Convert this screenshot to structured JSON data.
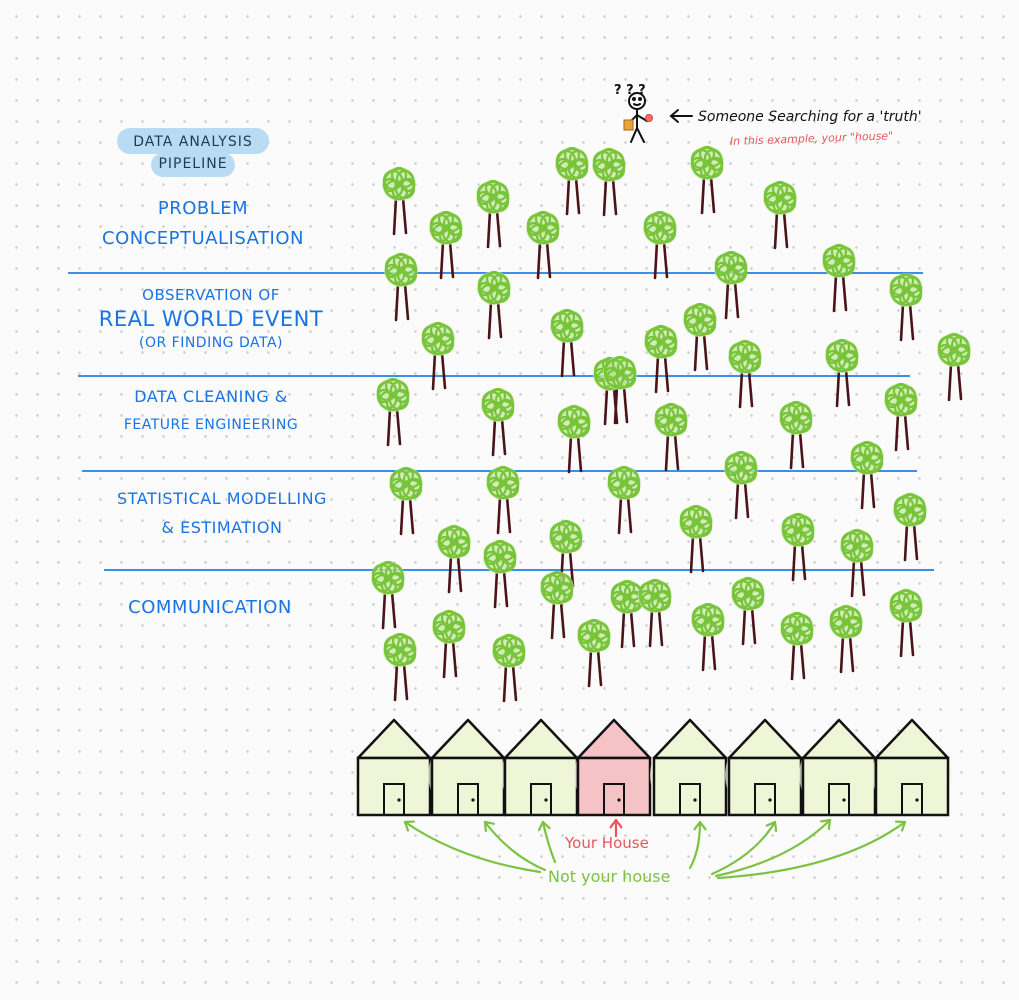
{
  "title": {
    "line1": "Data analysis",
    "line2": "pipeline"
  },
  "stages": [
    {
      "lines": [
        "Problem",
        "conceptualisation"
      ]
    },
    {
      "lines": [
        "Observation of",
        "Real world event",
        "(or finding data)"
      ]
    },
    {
      "lines": [
        "Data cleaning &",
        "feature engineering"
      ]
    },
    {
      "lines": [
        "Statistical modelling",
        "& Estimation"
      ]
    },
    {
      "lines": [
        "Communication"
      ]
    }
  ],
  "annotations": {
    "searcher_label": "Someone Searching for a 'truth'",
    "searcher_sublabel": "In this example, your \"house\"",
    "your_house": "Your House",
    "not_your_house": "Not your house",
    "question_marks": "? ? ?"
  },
  "colors": {
    "stage_text": "#1a73e3",
    "divider": "#3b8fe6",
    "title_bubble": "#b9dcf4",
    "tree_canopy": "#78c43a",
    "tree_trunk": "#4a1418",
    "house_fill": "#eff6d8",
    "your_house_fill": "#f5c3c6",
    "your_house_text": "#e8555a",
    "not_your_house_text": "#7cc242"
  },
  "icons": {
    "tree": "tree-icon",
    "house": "house-icon",
    "person": "stick-figure-icon"
  }
}
